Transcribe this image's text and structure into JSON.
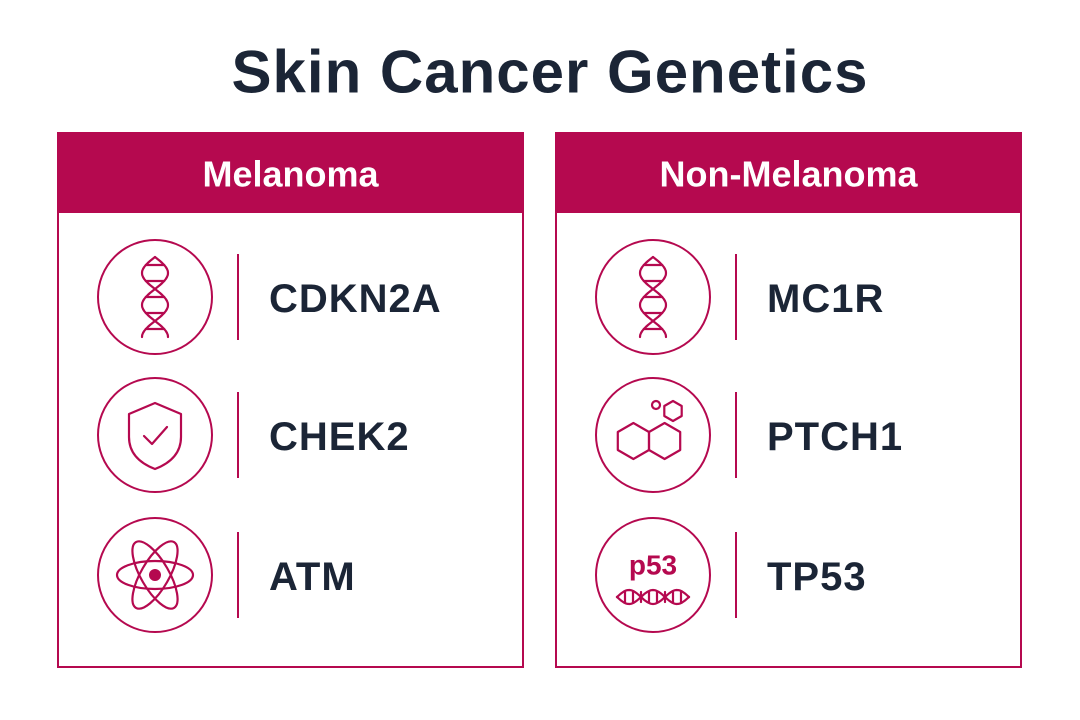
{
  "title": "Skin Cancer Genetics",
  "panels": [
    {
      "header": "Melanoma",
      "items": [
        {
          "label": "CDKN2A"
        },
        {
          "label": "CHEK2"
        },
        {
          "label": "ATM"
        }
      ]
    },
    {
      "header": "Non-Melanoma",
      "items": [
        {
          "label": "MC1R"
        },
        {
          "label": "PTCH1"
        },
        {
          "label": "TP53",
          "icon_text": "p53"
        }
      ]
    }
  ]
}
